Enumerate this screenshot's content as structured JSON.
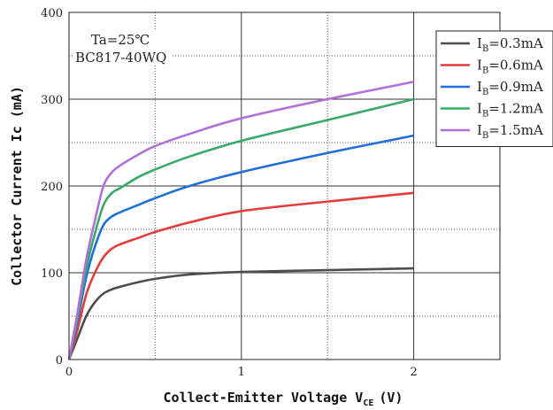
{
  "chart_data": {
    "type": "line",
    "title": "",
    "xlabel": "Collect-Emitter Voltage V",
    "xlabel_sub": "CE",
    "xlabel_unit": "(V)",
    "ylabel": "Collector  Current Ic (mA)",
    "xlim": [
      0,
      2.5
    ],
    "ylim": [
      0,
      400
    ],
    "x_ticks": [
      0,
      1,
      2
    ],
    "y_ticks": [
      0,
      100,
      200,
      300,
      400
    ],
    "grid": true,
    "legend_position": "top-right",
    "annotations": [
      "Ta=25℃",
      "BC817-40WQ"
    ],
    "series": [
      {
        "name": "I",
        "name_sub": "B",
        "name_value": "=0.3mA",
        "color": "#4d4d4d",
        "x": [
          0,
          0.05,
          0.1,
          0.15,
          0.2,
          0.25,
          0.3,
          0.4,
          0.5,
          0.7,
          1.0,
          1.5,
          2.0
        ],
        "y": [
          0,
          25,
          50,
          66,
          76,
          81,
          84,
          89,
          93,
          98,
          101,
          103,
          105
        ]
      },
      {
        "name": "I",
        "name_sub": "B",
        "name_value": "=0.6mA",
        "color": "#e23c3c",
        "x": [
          0,
          0.05,
          0.1,
          0.15,
          0.2,
          0.25,
          0.3,
          0.4,
          0.5,
          0.7,
          1.0,
          1.5,
          2.0
        ],
        "y": [
          0,
          35,
          75,
          100,
          118,
          128,
          133,
          140,
          147,
          158,
          171,
          182,
          192
        ]
      },
      {
        "name": "I",
        "name_sub": "B",
        "name_value": "=0.9mA",
        "color": "#1f6fd6",
        "x": [
          0,
          0.05,
          0.1,
          0.15,
          0.2,
          0.25,
          0.3,
          0.4,
          0.5,
          0.7,
          1.0,
          1.5,
          2.0
        ],
        "y": [
          0,
          45,
          95,
          130,
          155,
          165,
          170,
          178,
          186,
          200,
          216,
          238,
          258
        ]
      },
      {
        "name": "I",
        "name_sub": "B",
        "name_value": "=1.2mA",
        "color": "#3aaa6a",
        "x": [
          0,
          0.05,
          0.1,
          0.15,
          0.2,
          0.25,
          0.3,
          0.4,
          0.5,
          0.7,
          1.0,
          1.5,
          2.0
        ],
        "y": [
          0,
          50,
          105,
          145,
          178,
          192,
          198,
          210,
          219,
          234,
          252,
          276,
          300
        ]
      },
      {
        "name": "I",
        "name_sub": "B",
        "name_value": "=1.5mA",
        "color": "#b070d8",
        "x": [
          0,
          0.05,
          0.1,
          0.15,
          0.2,
          0.25,
          0.3,
          0.4,
          0.5,
          0.7,
          1.0,
          1.5,
          2.0
        ],
        "y": [
          0,
          55,
          115,
          160,
          200,
          216,
          224,
          236,
          246,
          260,
          278,
          300,
          320
        ]
      }
    ]
  }
}
